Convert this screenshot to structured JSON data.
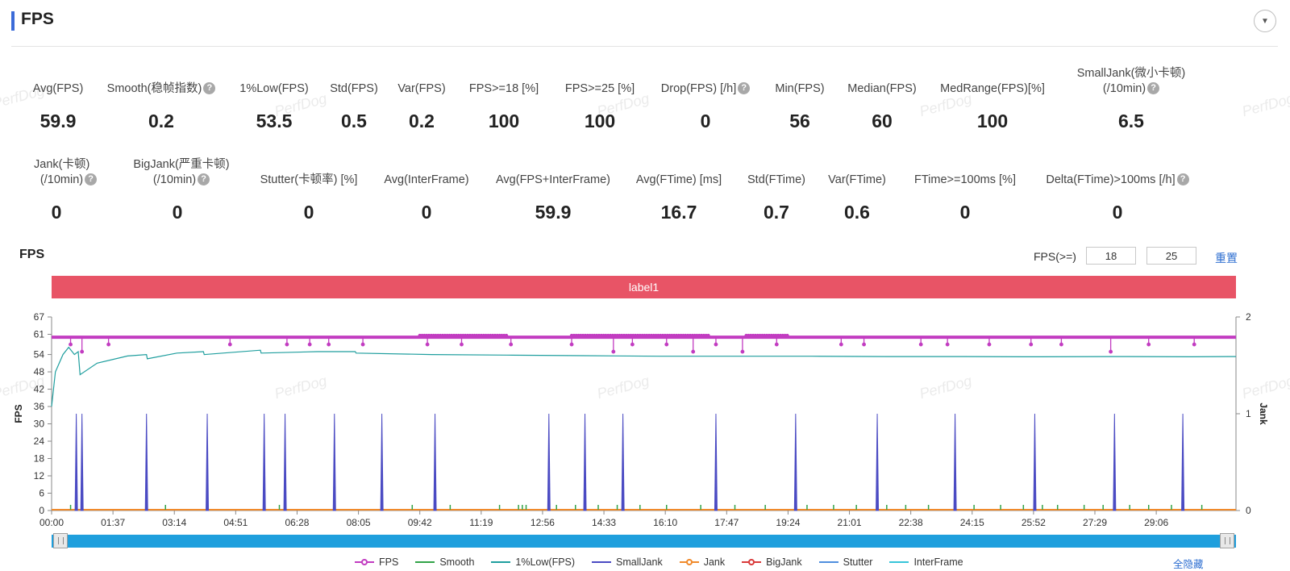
{
  "header": {
    "title": "FPS",
    "collapse_icon": "▼"
  },
  "metrics_row1": [
    {
      "label": "Avg(FPS)",
      "value": "59.9",
      "help": false
    },
    {
      "label": "Smooth(稳帧指数)",
      "value": "0.2",
      "help": true
    },
    {
      "label": "1%Low(FPS)",
      "value": "53.5",
      "help": false
    },
    {
      "label": "Std(FPS)",
      "value": "0.5",
      "help": false
    },
    {
      "label": "Var(FPS)",
      "value": "0.2",
      "help": false
    },
    {
      "label": "FPS>=18 [%]",
      "value": "100",
      "help": false
    },
    {
      "label": "FPS>=25 [%]",
      "value": "100",
      "help": false
    },
    {
      "label": "Drop(FPS) [/h]",
      "value": "0",
      "help": true
    },
    {
      "label": "Min(FPS)",
      "value": "56",
      "help": false
    },
    {
      "label": "Median(FPS)",
      "value": "60",
      "help": false
    },
    {
      "label": "MedRange(FPS)[%]",
      "value": "100",
      "help": false
    },
    {
      "label": "SmallJank(微小卡顿)",
      "label2": "(/10min)",
      "value": "6.5",
      "help": true
    }
  ],
  "metrics_row2": [
    {
      "label": "Jank(卡顿)",
      "label2": "(/10min)",
      "value": "0",
      "help": true
    },
    {
      "label": "BigJank(严重卡顿)",
      "label2": "(/10min)",
      "value": "0",
      "help": true
    },
    {
      "label": "Stutter(卡顿率) [%]",
      "value": "0",
      "help": false
    },
    {
      "label": "Avg(InterFrame)",
      "value": "0",
      "help": false
    },
    {
      "label": "Avg(FPS+InterFrame)",
      "value": "59.9",
      "help": false
    },
    {
      "label": "Avg(FTime) [ms]",
      "value": "16.7",
      "help": false
    },
    {
      "label": "Std(FTime)",
      "value": "0.7",
      "help": false
    },
    {
      "label": "Var(FTime)",
      "value": "0.6",
      "help": false
    },
    {
      "label": "FTime>=100ms [%]",
      "value": "0",
      "help": false
    },
    {
      "label": "Delta(FTime)>100ms [/h]",
      "value": "0",
      "help": true
    }
  ],
  "help_icon_glyph": "?",
  "chart_section": {
    "title": "FPS",
    "threshold_label": "FPS(>=)",
    "threshold_low": "18",
    "threshold_high": "25",
    "reset_label": "重置",
    "label_band": "label1",
    "hide_all_label": "全隐藏"
  },
  "watermark_text": "PerfDog",
  "chart_data": {
    "type": "line",
    "ylabel": "FPS",
    "y2label": "Jank",
    "y_ticks": [
      0,
      6,
      12,
      18,
      24,
      30,
      36,
      42,
      48,
      54,
      61,
      67
    ],
    "ylim": [
      0,
      67
    ],
    "y2_ticks": [
      0,
      1,
      2
    ],
    "y2lim": [
      0,
      2
    ],
    "x_ticks": [
      "00:00",
      "01:37",
      "03:14",
      "04:51",
      "06:28",
      "08:05",
      "09:42",
      "11:19",
      "12:56",
      "14:33",
      "16:10",
      "17:47",
      "19:24",
      "21:01",
      "22:38",
      "24:15",
      "25:52",
      "27:29",
      "29:06"
    ],
    "xlim_minutes": [
      0,
      31.2
    ],
    "fps_baseline": 60,
    "fps_dips": [
      [
        0.5,
        59
      ],
      [
        0.8,
        58
      ],
      [
        1.5,
        59
      ],
      [
        4.7,
        59
      ],
      [
        6.2,
        59
      ],
      [
        6.8,
        59
      ],
      [
        7.3,
        59
      ],
      [
        8.2,
        59
      ],
      [
        9.9,
        59
      ],
      [
        10.8,
        59
      ],
      [
        12.1,
        59
      ],
      [
        13.7,
        59
      ],
      [
        14.8,
        58
      ],
      [
        15.3,
        59
      ],
      [
        16.2,
        59
      ],
      [
        16.9,
        58
      ],
      [
        17.5,
        59
      ],
      [
        18.2,
        58
      ],
      [
        19.1,
        59
      ],
      [
        20.8,
        59
      ],
      [
        21.4,
        59
      ],
      [
        22.9,
        59
      ],
      [
        23.6,
        59
      ],
      [
        24.7,
        59
      ],
      [
        25.8,
        59
      ],
      [
        26.6,
        59
      ],
      [
        27.9,
        58
      ],
      [
        28.9,
        59
      ],
      [
        30.1,
        59
      ]
    ],
    "fps_dense_range": [
      [
        9.7,
        12.0
      ],
      [
        13.7,
        17.3
      ],
      [
        18.3,
        19.4
      ]
    ],
    "low1pct_curve": [
      [
        0,
        36
      ],
      [
        0.1,
        48
      ],
      [
        0.3,
        54
      ],
      [
        0.45,
        56.5
      ],
      [
        0.6,
        54
      ],
      [
        0.7,
        55
      ],
      [
        0.75,
        47
      ],
      [
        1.2,
        51
      ],
      [
        2.0,
        53.5
      ],
      [
        2.5,
        54
      ],
      [
        2.52,
        52.5
      ],
      [
        3.3,
        54.5
      ],
      [
        4.0,
        55
      ],
      [
        4.02,
        54
      ],
      [
        5.5,
        55.5
      ],
      [
        5.52,
        54.5
      ],
      [
        7.0,
        55
      ],
      [
        8.0,
        55
      ],
      [
        8.02,
        54.5
      ],
      [
        10.0,
        54
      ],
      [
        12.0,
        53.8
      ],
      [
        14.0,
        53.6
      ],
      [
        16.0,
        53.4
      ],
      [
        18.0,
        53.4
      ],
      [
        20.0,
        53.4
      ],
      [
        22.0,
        53.3
      ],
      [
        24.0,
        53.3
      ],
      [
        26.0,
        53.2
      ],
      [
        28.0,
        53.3
      ],
      [
        30.0,
        53.2
      ],
      [
        31.2,
        53.3
      ]
    ],
    "small_jank_minutes": [
      0.65,
      0.8,
      2.5,
      4.1,
      5.6,
      6.15,
      7.45,
      8.7,
      10.1,
      13.1,
      14.05,
      15.05,
      17.5,
      19.6,
      21.75,
      23.8,
      25.9,
      28.0,
      29.8
    ],
    "smooth_marks_minutes": [
      0.5,
      3.0,
      6.0,
      9.5,
      10.5,
      11.8,
      12.3,
      12.4,
      12.5,
      13.3,
      13.8,
      14.4,
      14.9,
      15.5,
      16.2,
      17.1,
      18.0,
      18.8,
      19.9,
      20.6,
      21.2,
      22.0,
      22.5,
      23.1,
      24.3,
      25.0,
      25.6,
      26.1,
      26.5,
      27.2,
      27.7,
      28.4,
      28.9,
      29.5,
      30.3
    ],
    "series": [
      {
        "name": "FPS",
        "color": "#c23cc1",
        "marker": true
      },
      {
        "name": "Smooth",
        "color": "#31a347",
        "marker": false
      },
      {
        "name": "1%Low(FPS)",
        "color": "#1e9e9e",
        "marker": false
      },
      {
        "name": "SmallJank",
        "color": "#4b4bc3",
        "marker": false
      },
      {
        "name": "Jank",
        "color": "#f08a2b",
        "marker": true
      },
      {
        "name": "BigJank",
        "color": "#d93a3a",
        "marker": true
      },
      {
        "name": "Stutter",
        "color": "#4f8fde",
        "marker": false
      },
      {
        "name": "InterFrame",
        "color": "#36c5d9",
        "marker": false
      }
    ]
  }
}
